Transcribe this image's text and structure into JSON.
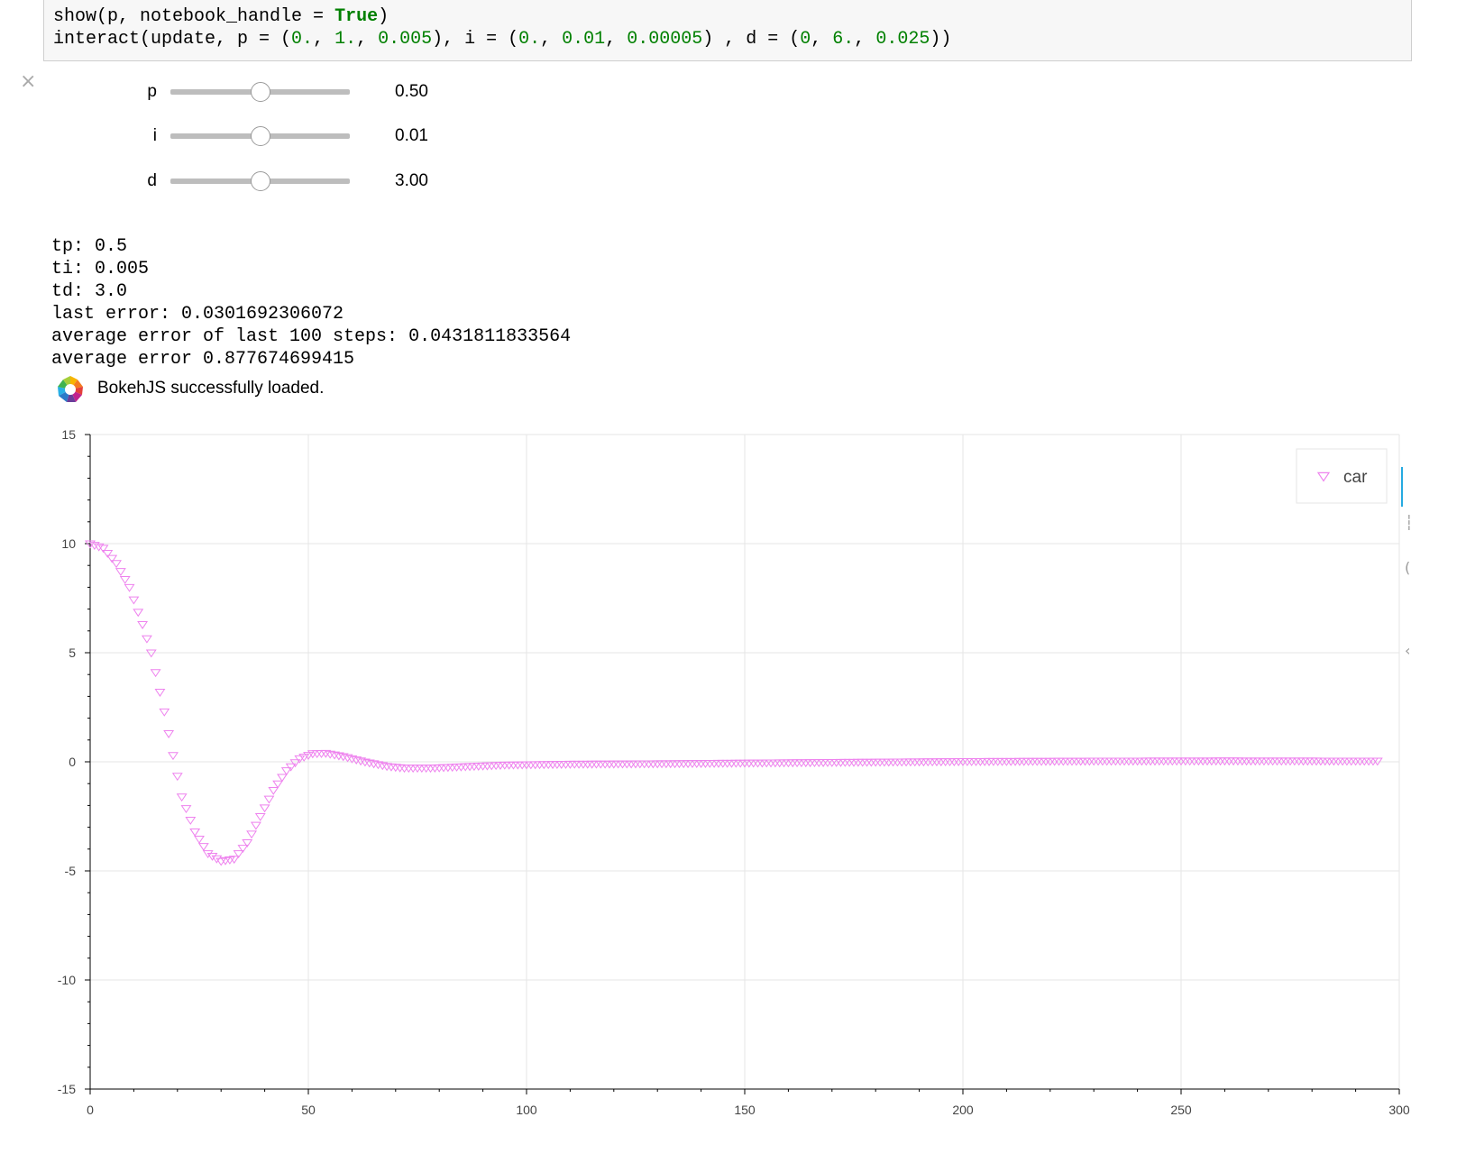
{
  "code": {
    "line1": {
      "a": "show(p, notebook_handle = ",
      "kw": "True",
      "b": ")"
    },
    "line2": {
      "a": "interact(update, p = (",
      "p0": "0.",
      "s1": ", ",
      "p1": "1.",
      "s2": ", ",
      "p2": "0.005",
      "b": "), i = (",
      "i0": "0.",
      "s3": ", ",
      "i1": "0.01",
      "s4": ", ",
      "i2": "0.00005",
      "c": ") , d = (",
      "d0": "0",
      "s5": ", ",
      "d1": "6.",
      "s6": ", ",
      "d2": "0.025",
      "e": "))"
    }
  },
  "close_icon": "×",
  "sliders": [
    {
      "label": "p",
      "value_text": "0.50",
      "fraction": 0.5
    },
    {
      "label": "i",
      "value_text": "0.01",
      "fraction": 0.5
    },
    {
      "label": "d",
      "value_text": "3.00",
      "fraction": 0.5
    }
  ],
  "output_lines": [
    "tp: 0.5",
    "ti: 0.005",
    "td: 3.0",
    "last error: 0.0301692306072",
    "average error of last 100 steps: 0.0431811833564",
    "average error 0.877674699415"
  ],
  "bokeh": {
    "message": "BokehJS successfully loaded.",
    "logo_icon": "bokeh-logo-icon"
  },
  "chart_data": {
    "type": "scatter",
    "marker": "inverted_triangle",
    "color": "#ee82ee",
    "series": [
      {
        "name": "car"
      }
    ],
    "legend": {
      "label": "car",
      "position": "top-right"
    },
    "xlim": [
      0,
      300
    ],
    "ylim": [
      -15,
      15
    ],
    "xticks": [
      "0",
      "50",
      "100",
      "150",
      "200",
      "250",
      "300"
    ],
    "yticks": [
      "15",
      "10",
      "5",
      "0",
      "-5",
      "-10",
      "-15"
    ],
    "grid": true,
    "x_step": 1,
    "n_points": 296,
    "keypoints": [
      [
        0,
        10.0
      ],
      [
        3,
        9.8
      ],
      [
        6,
        9.1
      ],
      [
        9,
        8.0
      ],
      [
        12,
        6.3
      ],
      [
        14,
        5.0
      ],
      [
        17,
        2.3
      ],
      [
        19,
        0.3
      ],
      [
        21,
        -1.6
      ],
      [
        24,
        -3.2
      ],
      [
        27,
        -4.2
      ],
      [
        30,
        -4.55
      ],
      [
        33,
        -4.45
      ],
      [
        36,
        -3.7
      ],
      [
        39,
        -2.5
      ],
      [
        42,
        -1.3
      ],
      [
        45,
        -0.4
      ],
      [
        48,
        0.15
      ],
      [
        51,
        0.38
      ],
      [
        54,
        0.4
      ],
      [
        58,
        0.25
      ],
      [
        63,
        0.0
      ],
      [
        68,
        -0.2
      ],
      [
        72,
        -0.28
      ],
      [
        78,
        -0.28
      ],
      [
        85,
        -0.22
      ],
      [
        95,
        -0.14
      ],
      [
        110,
        -0.1
      ],
      [
        130,
        -0.08
      ],
      [
        150,
        -0.05
      ],
      [
        170,
        -0.02
      ],
      [
        200,
        0.02
      ],
      [
        230,
        0.04
      ],
      [
        260,
        0.05
      ],
      [
        295,
        0.04
      ]
    ]
  },
  "toolbar": {
    "pan_icon": "┆",
    "wheel_icon": "(",
    "reset_icon": "‹"
  }
}
